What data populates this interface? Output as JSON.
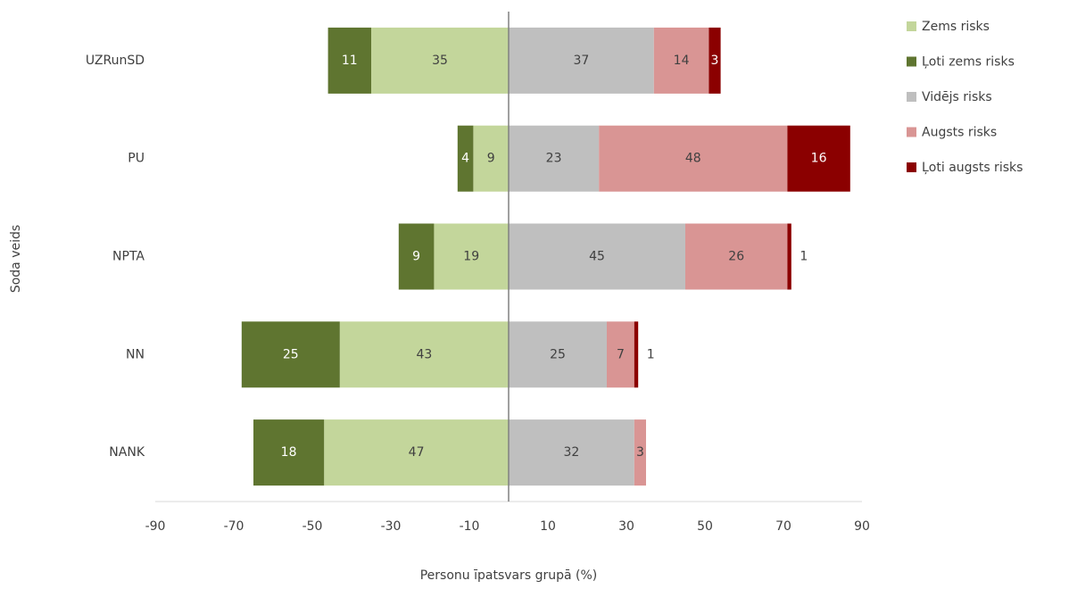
{
  "chart_data": {
    "type": "diverging-bar",
    "x_label": "Personu īpatsvars grupā (%)",
    "y_label": "Soda veids",
    "categories": [
      "UZRunSD",
      "PU",
      "NPTA",
      "NN",
      "NANK"
    ],
    "series": [
      {
        "name": "Zems risks",
        "color": "#c3d69b",
        "values": [
          -35,
          -9,
          -19,
          -43,
          -47
        ],
        "value_labels": [
          "35",
          "9",
          "19",
          "43",
          "47"
        ]
      },
      {
        "name": "Ļoti zems risks",
        "color": "#5f7530",
        "values": [
          -11,
          -4,
          -9,
          -25,
          -18
        ],
        "value_labels": [
          "11",
          "4",
          "9",
          "25",
          "18"
        ]
      },
      {
        "name": "Vidējs risks",
        "color": "#bfbfbf",
        "values": [
          37,
          23,
          45,
          25,
          32
        ]
      },
      {
        "name": "Augsts risks",
        "color": "#d99594",
        "values": [
          14,
          48,
          26,
          7,
          3
        ]
      },
      {
        "name": "Ļoti augsts risks",
        "color": "#8b0000",
        "values": [
          3,
          16,
          1,
          1,
          null
        ]
      }
    ],
    "xlim": [
      -90,
      90
    ],
    "xticks": [
      -90,
      -70,
      -50,
      -30,
      -10,
      10,
      30,
      50,
      70,
      90
    ],
    "legend": "right"
  }
}
